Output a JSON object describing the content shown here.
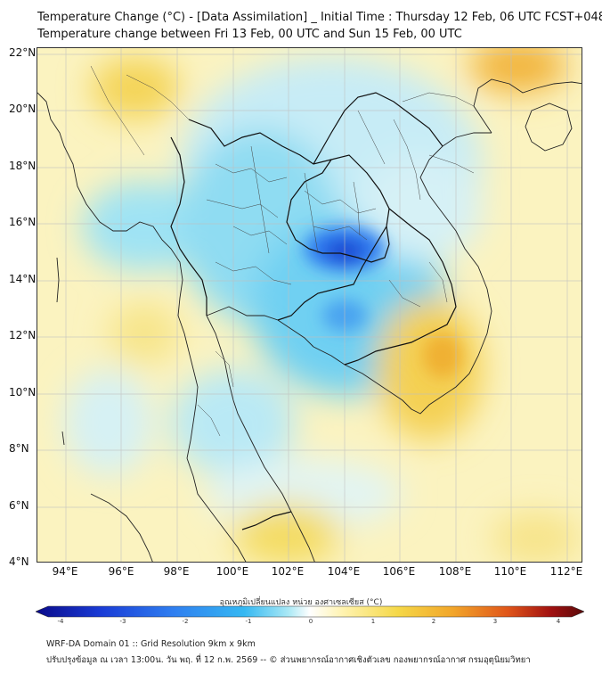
{
  "header": {
    "title_line1": "Temperature Change (°C) - [Data Assimilation] _ Initial Time : Thursday 12 Feb, 06 UTC FCST+048",
    "title_line2": "Temperature change between Fri 13 Feb, 00 UTC and Sun 15 Feb, 00 UTC"
  },
  "axes": {
    "lat_labels": [
      "22°N",
      "20°N",
      "18°N",
      "16°N",
      "14°N",
      "12°N",
      "10°N",
      "8°N",
      "6°N",
      "4°N"
    ],
    "lon_labels": [
      "94°E",
      "96°E",
      "98°E",
      "100°E",
      "102°E",
      "104°E",
      "106°E",
      "108°E",
      "110°E",
      "112°E"
    ],
    "lat_range": [
      4,
      22.2
    ],
    "lon_range": [
      93,
      112.6
    ]
  },
  "colorbar": {
    "title": "อุณหภูมิเปลี่ยนแปลง หน่วย องศาเซลเซียส (°C)",
    "ticks": [
      "-4",
      "-3",
      "-2",
      "-1",
      "0",
      "1",
      "2",
      "3",
      "4"
    ],
    "range": [
      -4,
      4
    ],
    "colors": [
      "#0a0a8a",
      "#1a3cd6",
      "#2f7ef0",
      "#35b8f2",
      "#a8e8f5",
      "#ffffff",
      "#fff3b0",
      "#f5d848",
      "#f2a62a",
      "#e0561a",
      "#a01010",
      "#5a0a0a"
    ]
  },
  "footer": {
    "line1": "WRF-DA Domain 01 :: Grid Resolution 9km x 9km",
    "line2": "ปรับปรุงข้อมูล ณ เวลา 13:00น. วัน พฤ. ที่ 12 ก.พ. 2569 -- © ส่วนพยากรณ์อากาศเชิงตัวเลข กองพยากรณ์อากาศ กรมอุตุนิยมวิทยา"
  }
}
